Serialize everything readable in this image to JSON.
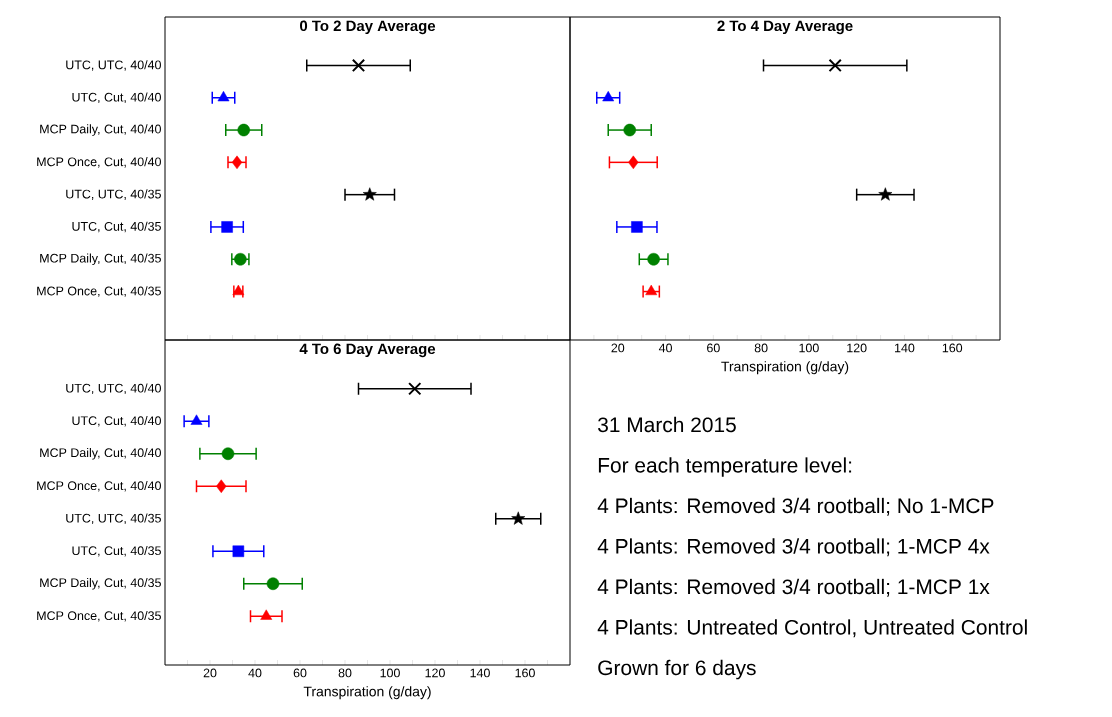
{
  "chart_data": [
    {
      "type": "scatter",
      "orientation": "horizontal",
      "title": "0 To 2 Day Average",
      "tick_labels": "y",
      "categories": [
        "UTC, UTC, 40/40",
        "UTC, Cut, 40/40",
        "MCP Daily, Cut, 40/40",
        "MCP Once, Cut, 40/40",
        "UTC, UTC, 40/35",
        "UTC, Cut, 40/35",
        "MCP Daily, Cut, 40/35",
        "MCP Once, Cut, 40/35"
      ],
      "xlim": [
        0,
        180
      ],
      "xticks": [
        {
          "value": 10,
          "label": null
        },
        20,
        {
          "value": 30,
          "label": null
        },
        40,
        {
          "value": 50,
          "label": null
        },
        60,
        {
          "value": 70,
          "label": null
        },
        80,
        {
          "value": 90,
          "label": null
        },
        100,
        {
          "value": 110,
          "label": null
        },
        120,
        {
          "value": 130,
          "label": null
        },
        140,
        {
          "value": 150,
          "label": null
        },
        160,
        {
          "value": 170,
          "label": null
        }
      ],
      "series": [
        {
          "color": "#000000",
          "marker": "cross",
          "values": [
            86,
            null,
            null,
            null,
            null,
            null,
            null,
            null
          ],
          "errors": [
            23,
            null,
            null,
            null,
            null,
            null,
            null,
            null
          ]
        },
        {
          "color": "#0000ff",
          "marker": "triangle",
          "values": [
            null,
            26,
            null,
            null,
            null,
            null,
            null,
            null
          ],
          "errors": [
            null,
            5,
            null,
            null,
            null,
            null,
            null,
            null
          ]
        },
        {
          "color": "#008000",
          "marker": "circle",
          "values": [
            null,
            null,
            35,
            null,
            null,
            null,
            null,
            null
          ],
          "errors": [
            null,
            null,
            8,
            null,
            null,
            null,
            null,
            null
          ]
        },
        {
          "color": "#ff0000",
          "marker": "diamond",
          "values": [
            null,
            null,
            null,
            32,
            null,
            null,
            null,
            null
          ],
          "errors": [
            null,
            null,
            null,
            4,
            null,
            null,
            null,
            null
          ]
        },
        {
          "color": "#000000",
          "marker": "star",
          "values": [
            null,
            null,
            null,
            null,
            91,
            null,
            null,
            null
          ],
          "errors": [
            null,
            null,
            null,
            null,
            11,
            null,
            null,
            null
          ]
        },
        {
          "color": "#0000ff",
          "marker": "square",
          "values": [
            null,
            null,
            null,
            null,
            null,
            27.6,
            null,
            null
          ],
          "errors": [
            null,
            null,
            null,
            null,
            null,
            7.2,
            null,
            null
          ]
        },
        {
          "color": "#008000",
          "marker": "circle",
          "values": [
            null,
            null,
            null,
            null,
            null,
            null,
            33.5,
            null
          ],
          "errors": [
            null,
            null,
            null,
            null,
            null,
            null,
            3.8,
            null
          ]
        },
        {
          "color": "#ff0000",
          "marker": "triangle",
          "values": [
            null,
            null,
            null,
            null,
            null,
            null,
            null,
            32.6
          ],
          "errors": [
            null,
            null,
            null,
            null,
            null,
            null,
            null,
            2
          ]
        }
      ]
    },
    {
      "type": "scatter",
      "orientation": "horizontal",
      "title": "2 To 4 Day Average",
      "xlabel": "Transpiration (g/day)",
      "tick_labels": "x",
      "categories": [
        null,
        null,
        null,
        null,
        null,
        null,
        null,
        null
      ],
      "xlim": [
        0,
        180
      ],
      "xticks": [
        {
          "value": 10,
          "label": null
        },
        20,
        {
          "value": 30,
          "label": null
        },
        40,
        {
          "value": 50,
          "label": null
        },
        60,
        {
          "value": 70,
          "label": null
        },
        80,
        {
          "value": 90,
          "label": null
        },
        100,
        {
          "value": 110,
          "label": null
        },
        120,
        {
          "value": 130,
          "label": null
        },
        140,
        {
          "value": 150,
          "label": null
        },
        160,
        {
          "value": 170,
          "label": null
        }
      ],
      "series": [
        {
          "color": "#000000",
          "marker": "cross",
          "values": [
            111,
            null,
            null,
            null,
            null,
            null,
            null,
            null
          ],
          "errors": [
            30,
            null,
            null,
            null,
            null,
            null,
            null,
            null
          ]
        },
        {
          "color": "#0000ff",
          "marker": "triangle",
          "values": [
            null,
            16,
            null,
            null,
            null,
            null,
            null,
            null
          ],
          "errors": [
            null,
            4.8,
            null,
            null,
            null,
            null,
            null,
            null
          ]
        },
        {
          "color": "#008000",
          "marker": "circle",
          "values": [
            null,
            null,
            25,
            null,
            null,
            null,
            null,
            null
          ],
          "errors": [
            null,
            null,
            9,
            null,
            null,
            null,
            null,
            null
          ]
        },
        {
          "color": "#ff0000",
          "marker": "diamond",
          "values": [
            null,
            null,
            null,
            26.5,
            null,
            null,
            null,
            null
          ],
          "errors": [
            null,
            null,
            null,
            10,
            null,
            null,
            null,
            null
          ]
        },
        {
          "color": "#000000",
          "marker": "star",
          "values": [
            null,
            null,
            null,
            null,
            132,
            null,
            null,
            null
          ],
          "errors": [
            null,
            null,
            null,
            null,
            12,
            null,
            null,
            null
          ]
        },
        {
          "color": "#0000ff",
          "marker": "square",
          "values": [
            null,
            null,
            null,
            null,
            null,
            28,
            null,
            null
          ],
          "errors": [
            null,
            null,
            null,
            null,
            null,
            8.4,
            null,
            null
          ]
        },
        {
          "color": "#008000",
          "marker": "circle",
          "values": [
            null,
            null,
            null,
            null,
            null,
            null,
            35,
            null
          ],
          "errors": [
            null,
            null,
            null,
            null,
            null,
            null,
            6,
            null
          ]
        },
        {
          "color": "#ff0000",
          "marker": "triangle",
          "values": [
            null,
            null,
            null,
            null,
            null,
            null,
            null,
            34
          ],
          "errors": [
            null,
            null,
            null,
            null,
            null,
            null,
            null,
            3.4
          ]
        }
      ]
    },
    {
      "type": "scatter",
      "orientation": "horizontal",
      "title": "4 To 6 Day Average",
      "xlabel": "Transpiration (g/day)",
      "categories": [
        "UTC, UTC, 40/40",
        "UTC, Cut, 40/40",
        "MCP Daily, Cut, 40/40",
        "MCP Once, Cut, 40/40",
        "UTC, UTC, 40/35",
        "UTC, Cut, 40/35",
        "MCP Daily, Cut, 40/35",
        "MCP Once, Cut, 40/35"
      ],
      "xlim": [
        0,
        180
      ],
      "xticks": [
        {
          "value": 10,
          "label": null
        },
        20,
        {
          "value": 30,
          "label": null
        },
        40,
        {
          "value": 50,
          "label": null
        },
        60,
        {
          "value": 70,
          "label": null
        },
        80,
        {
          "value": 90,
          "label": null
        },
        100,
        {
          "value": 110,
          "label": null
        },
        120,
        {
          "value": 130,
          "label": null
        },
        140,
        {
          "value": 150,
          "label": null
        },
        160,
        {
          "value": 170,
          "label": null
        }
      ],
      "series": [
        {
          "color": "#000000",
          "marker": "cross",
          "values": [
            111,
            null,
            null,
            null,
            null,
            null,
            null,
            null
          ],
          "errors": [
            25,
            null,
            null,
            null,
            null,
            null,
            null,
            null
          ]
        },
        {
          "color": "#0000ff",
          "marker": "triangle",
          "values": [
            null,
            14,
            null,
            null,
            null,
            null,
            null,
            null
          ],
          "errors": [
            null,
            5.5,
            null,
            null,
            null,
            null,
            null,
            null
          ]
        },
        {
          "color": "#008000",
          "marker": "circle",
          "values": [
            null,
            null,
            28,
            null,
            null,
            null,
            null,
            null
          ],
          "errors": [
            null,
            null,
            12.5,
            null,
            null,
            null,
            null,
            null
          ]
        },
        {
          "color": "#ff0000",
          "marker": "diamond",
          "values": [
            null,
            null,
            null,
            25,
            null,
            null,
            null,
            null
          ],
          "errors": [
            null,
            null,
            null,
            11,
            null,
            null,
            null,
            null
          ]
        },
        {
          "color": "#000000",
          "marker": "star",
          "values": [
            null,
            null,
            null,
            null,
            157,
            null,
            null,
            null
          ],
          "errors": [
            null,
            null,
            null,
            null,
            10,
            null,
            null,
            null
          ]
        },
        {
          "color": "#0000ff",
          "marker": "square",
          "values": [
            null,
            null,
            null,
            null,
            null,
            32.6,
            null,
            null
          ],
          "errors": [
            null,
            null,
            null,
            null,
            null,
            11.3,
            null,
            null
          ]
        },
        {
          "color": "#008000",
          "marker": "circle",
          "values": [
            null,
            null,
            null,
            null,
            null,
            null,
            48,
            null
          ],
          "errors": [
            null,
            null,
            null,
            null,
            null,
            null,
            13,
            null
          ]
        },
        {
          "color": "#ff0000",
          "marker": "triangle",
          "values": [
            null,
            null,
            null,
            null,
            null,
            null,
            null,
            45
          ],
          "errors": [
            null,
            null,
            null,
            null,
            null,
            null,
            null,
            7
          ]
        }
      ]
    },
    {
      "type": "other",
      "annotations": [
        "31 March 2015",
        "For each temperature level:",
        "4 Plants: Removed 3/4 rootball; No 1-MCP",
        "4 Plants: Removed 3/4 rootball; 1-MCP 4x",
        "4 Plants: Removed 3/4 rootball; 1-MCP 1x",
        "4 Plants: Untreated Control, Untreated Control",
        "Grown for 6 days"
      ]
    }
  ]
}
